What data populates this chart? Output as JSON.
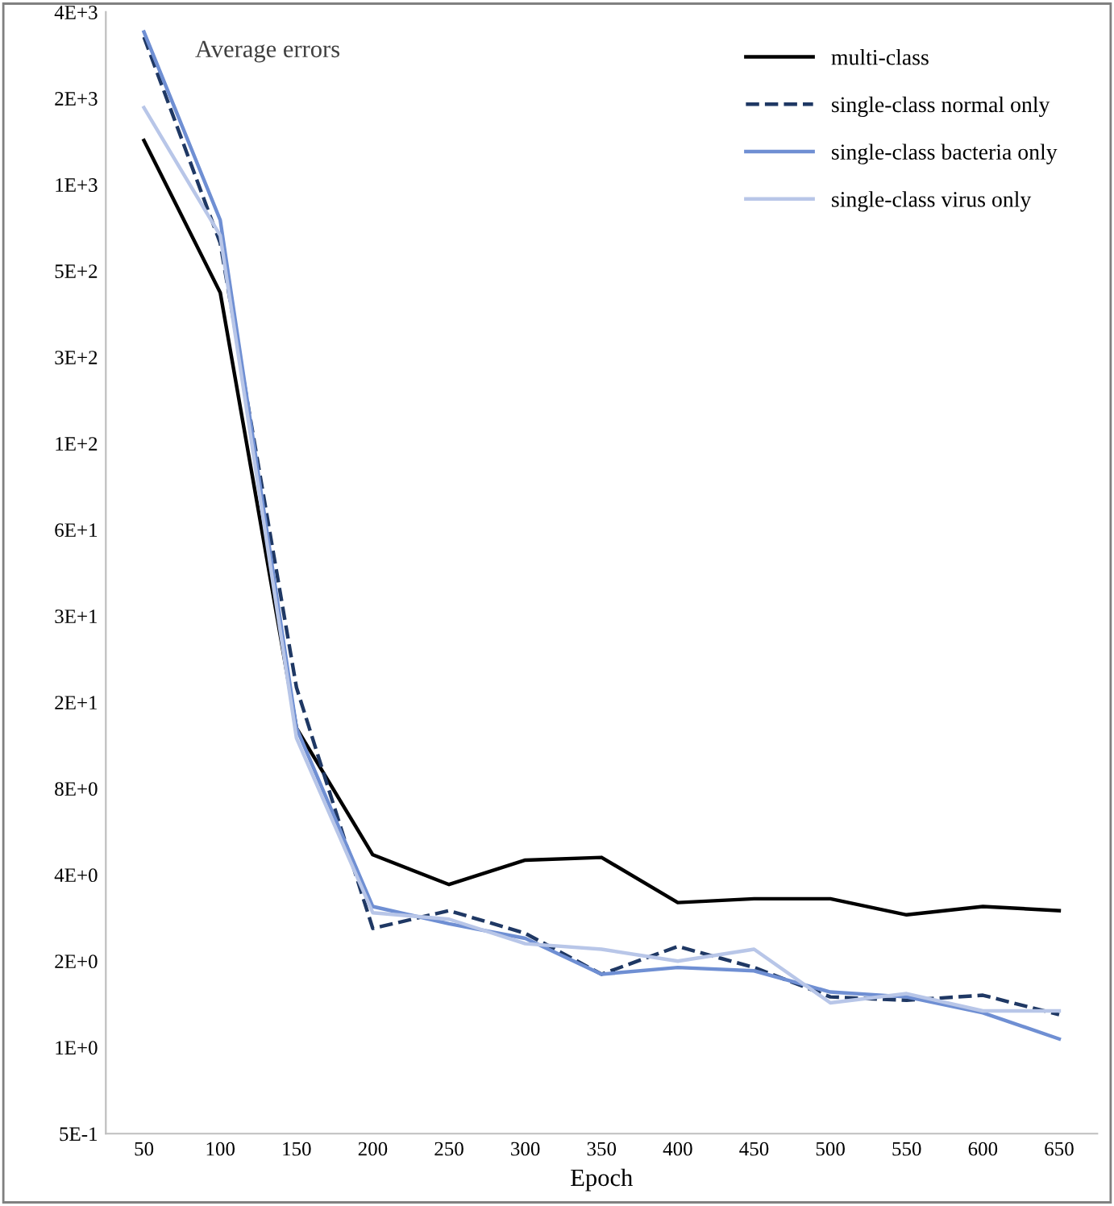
{
  "chart_data": {
    "type": "line",
    "title": "Average errors",
    "xlabel": "Epoch",
    "categories": [
      "50",
      "100",
      "150",
      "200",
      "250",
      "300",
      "350",
      "400",
      "450",
      "500",
      "550",
      "600",
      "650"
    ],
    "series": [
      {
        "name": "multi-class",
        "color": "#000000",
        "line_style": "solid",
        "values": [
          1460,
          430,
          13,
          4.7,
          3.7,
          4.5,
          4.6,
          3.2,
          3.3,
          3.3,
          2.9,
          3.1,
          3.0
        ]
      },
      {
        "name": "single-class normal only",
        "color": "#1f3864",
        "line_style": "dashed",
        "values": [
          3350,
          640,
          18,
          2.6,
          3.0,
          2.5,
          1.8,
          2.25,
          1.9,
          1.5,
          1.46,
          1.52,
          1.3
        ]
      },
      {
        "name": "single-class bacteria only",
        "color": "#6f8fd3",
        "line_style": "solid",
        "values": [
          3490,
          770,
          13,
          3.1,
          2.7,
          2.4,
          1.8,
          1.9,
          1.85,
          1.56,
          1.5,
          1.32,
          1.07
        ]
      },
      {
        "name": "single-class virus only",
        "color": "#b8c6e8",
        "line_style": "solid",
        "values": [
          1900,
          680,
          12,
          2.95,
          2.8,
          2.3,
          2.2,
          2.0,
          2.2,
          1.43,
          1.54,
          1.34,
          1.34
        ]
      }
    ],
    "log": "y",
    "ylim": [
      0.5,
      4096
    ],
    "yticks": [
      {
        "value": 0.5,
        "label": "5E-1"
      },
      {
        "value": 1,
        "label": "1E+0"
      },
      {
        "value": 2,
        "label": "2E+0"
      },
      {
        "value": 4,
        "label": "4E+0"
      },
      {
        "value": 8,
        "label": "8E+0"
      },
      {
        "value": 16,
        "label": "2E+1"
      },
      {
        "value": 32,
        "label": "3E+1"
      },
      {
        "value": 64,
        "label": "6E+1"
      },
      {
        "value": 128,
        "label": "1E+2"
      },
      {
        "value": 256,
        "label": "3E+2"
      },
      {
        "value": 512,
        "label": "5E+2"
      },
      {
        "value": 1024,
        "label": "1E+3"
      },
      {
        "value": 2048,
        "label": "2E+3"
      },
      {
        "value": 4096,
        "label": "4E+3"
      }
    ],
    "grid": false,
    "legend": "top right",
    "marker": "none"
  }
}
